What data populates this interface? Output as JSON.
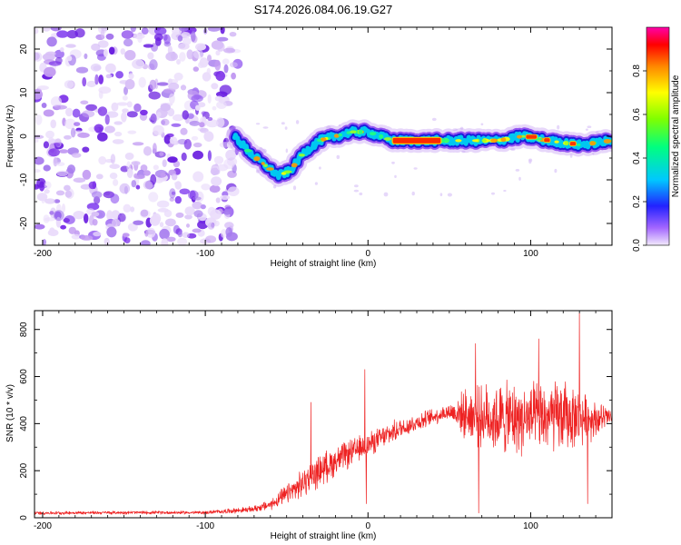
{
  "title": "S174.2026.084.06.19.G27",
  "colors": {
    "snr_line": "#ee2222",
    "background": "#ffffff",
    "axis": "#000000"
  },
  "chart_data": [
    {
      "type": "heatmap",
      "title": "S174.2026.084.06.19.G27",
      "xlabel": "Height of straight line (km)",
      "ylabel": "Frequency (Hz)",
      "xlim": [
        -205,
        150
      ],
      "ylim": [
        -25,
        25
      ],
      "xticks": [
        -200,
        -100,
        0,
        100
      ],
      "yticks": [
        -20,
        -10,
        0,
        10,
        20
      ],
      "colorbar": {
        "label": "Normalized spectral amplitude",
        "range": [
          0,
          1
        ],
        "ticks": [
          0.0,
          0.2,
          0.4,
          0.6,
          0.8
        ]
      },
      "noise_region_x": [
        -205,
        -80
      ],
      "ridge": [
        {
          "x": -82,
          "y": 0
        },
        {
          "x": -72,
          "y": -4
        },
        {
          "x": -62,
          "y": -7
        },
        {
          "x": -55,
          "y": -9
        },
        {
          "x": -48,
          "y": -8
        },
        {
          "x": -40,
          "y": -4
        },
        {
          "x": -30,
          "y": -1
        },
        {
          "x": -20,
          "y": 0
        },
        {
          "x": -10,
          "y": 1
        },
        {
          "x": 0,
          "y": 1
        },
        {
          "x": 15,
          "y": -1
        },
        {
          "x": 45,
          "y": -1
        },
        {
          "x": 60,
          "y": -1
        },
        {
          "x": 80,
          "y": -1
        },
        {
          "x": 95,
          "y": 0
        },
        {
          "x": 110,
          "y": -1
        },
        {
          "x": 130,
          "y": -2
        },
        {
          "x": 150,
          "y": -1
        }
      ],
      "peak_segment_x": [
        15,
        45
      ]
    },
    {
      "type": "line",
      "xlabel": "Height of straight line (km)",
      "ylabel": "SNR (10 * v/v)",
      "xlim": [
        -205,
        150
      ],
      "ylim": [
        0,
        880
      ],
      "xticks": [
        -200,
        -100,
        0,
        100
      ],
      "yticks": [
        0,
        200,
        400,
        600,
        800
      ],
      "series": [
        {
          "name": "SNR",
          "envelope": [
            {
              "x": -205,
              "mean": 20,
              "spread": 8
            },
            {
              "x": -150,
              "mean": 22,
              "spread": 8
            },
            {
              "x": -100,
              "mean": 22,
              "spread": 8
            },
            {
              "x": -72,
              "mean": 35,
              "spread": 15
            },
            {
              "x": -60,
              "mean": 55,
              "spread": 25
            },
            {
              "x": -45,
              "mean": 120,
              "spread": 60
            },
            {
              "x": -30,
              "mean": 200,
              "spread": 80
            },
            {
              "x": -15,
              "mean": 260,
              "spread": 70
            },
            {
              "x": 0,
              "mean": 310,
              "spread": 60
            },
            {
              "x": 20,
              "mean": 380,
              "spread": 50
            },
            {
              "x": 40,
              "mean": 430,
              "spread": 40
            },
            {
              "x": 50,
              "mean": 450,
              "spread": 40
            },
            {
              "x": 60,
              "mean": 440,
              "spread": 120
            },
            {
              "x": 80,
              "mean": 420,
              "spread": 180
            },
            {
              "x": 100,
              "mean": 420,
              "spread": 170
            },
            {
              "x": 120,
              "mean": 430,
              "spread": 180
            },
            {
              "x": 140,
              "mean": 420,
              "spread": 90
            },
            {
              "x": 150,
              "mean": 430,
              "spread": 40
            }
          ],
          "spikes": [
            {
              "x": -35,
              "y": 490
            },
            {
              "x": -2,
              "y": 630
            },
            {
              "x": -1,
              "y": 60
            },
            {
              "x": 66,
              "y": 740
            },
            {
              "x": 68,
              "y": 20
            },
            {
              "x": 105,
              "y": 760
            },
            {
              "x": 130,
              "y": 870
            },
            {
              "x": 135,
              "y": 60
            }
          ]
        }
      ]
    }
  ]
}
